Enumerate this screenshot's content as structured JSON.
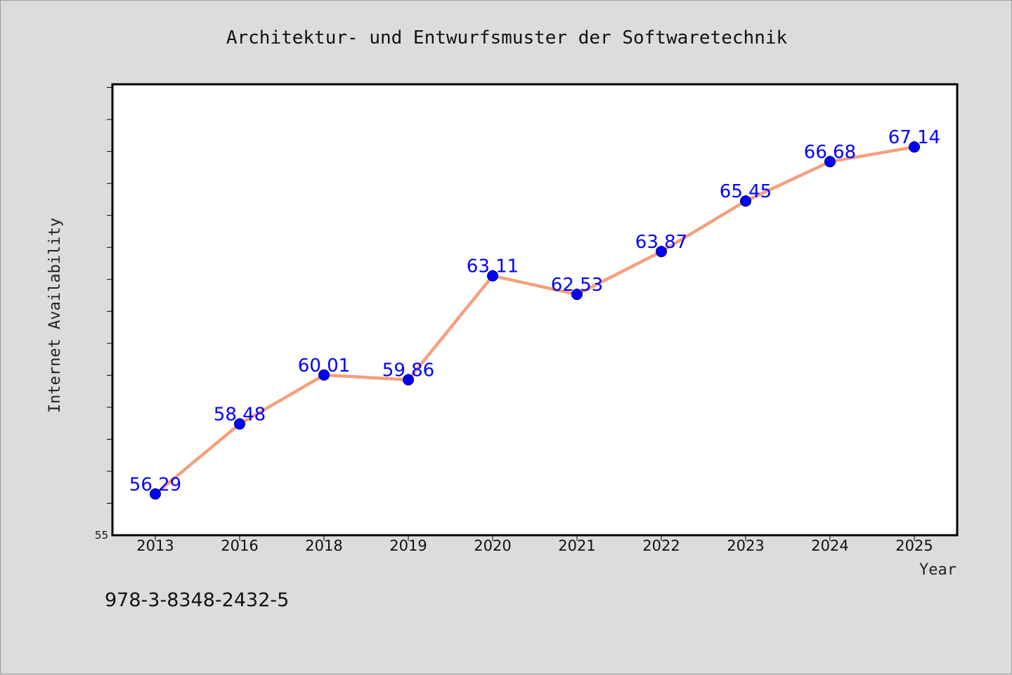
{
  "footer": {
    "isbn": "978-3-8348-2432-5"
  },
  "chart_data": {
    "type": "line",
    "title": "Architektur- und Entwurfsmuster der Softwaretechnik",
    "xlabel": "Year",
    "ylabel": "Internet Availability",
    "categories": [
      "2013",
      "2016",
      "2018",
      "2019",
      "2020",
      "2021",
      "2022",
      "2023",
      "2024",
      "2025"
    ],
    "series": [
      {
        "values": [
          56.29,
          58.48,
          60.01,
          59.86,
          63.11,
          62.53,
          63.87,
          65.45,
          66.68,
          67.14
        ],
        "data_labels": [
          "56.29",
          "58.48",
          "60.01",
          "59.86",
          "63.11",
          "62.53",
          "63.87",
          "65.45",
          "66.68",
          "67.14"
        ]
      }
    ],
    "ylim": [
      55,
      69.1
    ],
    "ytick_labels": [
      "55"
    ],
    "grid": false,
    "legend": "none",
    "colors": {
      "line": "#f4a07c",
      "marker": "#0000ff",
      "label": "#0000ff",
      "plot_bg": "#ffffff",
      "page_bg": "#dcdcdc"
    }
  }
}
